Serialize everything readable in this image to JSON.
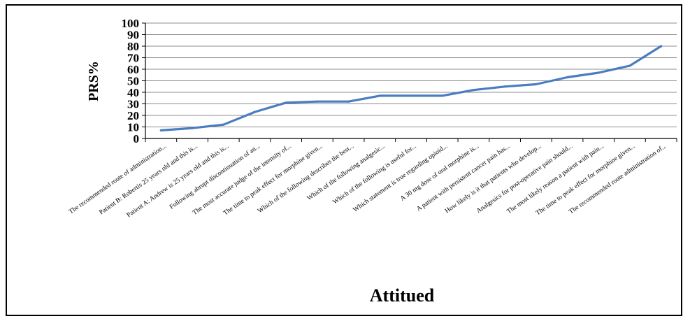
{
  "chart_data": {
    "type": "line",
    "title": "",
    "xlabel": "Attitued",
    "ylabel": "PRS%",
    "ylim": [
      0,
      100
    ],
    "yticks": [
      0,
      10,
      20,
      30,
      40,
      50,
      60,
      70,
      80,
      90,
      100
    ],
    "grid": "horizontal",
    "legend": "none",
    "line_color": "#4a7dc0",
    "categories": [
      "The recommended route of administration...",
      "Patient B: Robertis 25 years old and this is...",
      "Patient A: Andrew is 25 years old and this is...",
      "Following abrupt discontinuation of an...",
      "The most accurate judge of the intensity of...",
      "The time to peak effect for morphine given...",
      "Which of the following describes the best...",
      "Which of the following analgesic...",
      "Which of the following is useful for...",
      "Which statement is true regarding opioid...",
      "A 30 mg dose of oral morphine is...",
      "A patient with persistent cancer pain has...",
      "How likely is it that patients who develop...",
      "Analgesics for post-operative pain should...",
      "The most likely reason a patient with pain...",
      "The time to peak effect for morphine given...",
      "The recommended route administration of..."
    ],
    "series": [
      {
        "values": [
          7,
          9,
          12,
          23,
          31,
          32,
          32,
          37,
          37,
          37,
          42,
          45,
          47,
          53,
          57,
          63,
          80
        ]
      }
    ]
  }
}
